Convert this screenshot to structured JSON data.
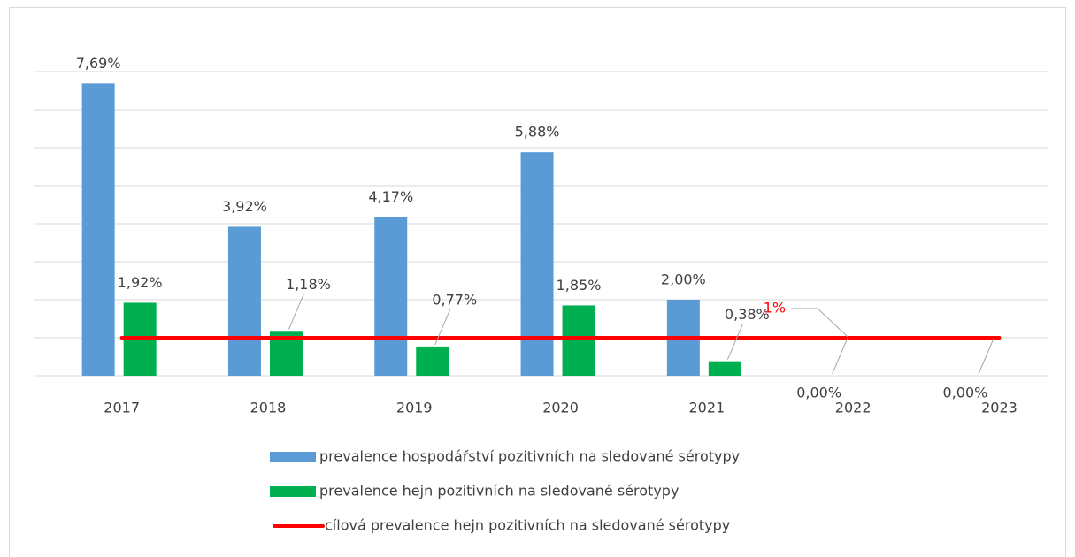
{
  "chart_data": {
    "type": "bar",
    "categories": [
      "2017",
      "2018",
      "2019",
      "2020",
      "2021",
      "2022",
      "2023"
    ],
    "series": [
      {
        "name": "prevalence hospodářství pozitivních na sledované sérotypy",
        "color": "#5b9bd5",
        "values": [
          7.69,
          3.92,
          4.17,
          5.88,
          2.0,
          0,
          0
        ],
        "value_labels": [
          "7,69%",
          "3,92%",
          "4,17%",
          "5,88%",
          "2,00%",
          "0,00%",
          "0,00%"
        ]
      },
      {
        "name": "prevalence hejn pozitivních na sledované sérotypy",
        "color": "#00b050",
        "values": [
          1.92,
          1.18,
          0.77,
          1.85,
          0.38,
          null,
          null
        ],
        "value_labels": [
          "1,92%",
          "1,18%",
          "0,77%",
          "1,85%",
          "0,38%",
          null,
          null
        ]
      },
      {
        "name": "cílová prevalence hejn pozitivních na sledované sérotypy",
        "color": "#ff0000",
        "kind": "line",
        "values": [
          1,
          1,
          1,
          1,
          1,
          1,
          1
        ],
        "value_labels": [
          null,
          null,
          null,
          null,
          null,
          "1%",
          null
        ]
      }
    ],
    "ylim": [
      0,
      9
    ],
    "yticks": [
      0,
      1,
      2,
      3,
      4,
      5,
      6,
      7,
      8,
      9
    ],
    "grid": true
  }
}
